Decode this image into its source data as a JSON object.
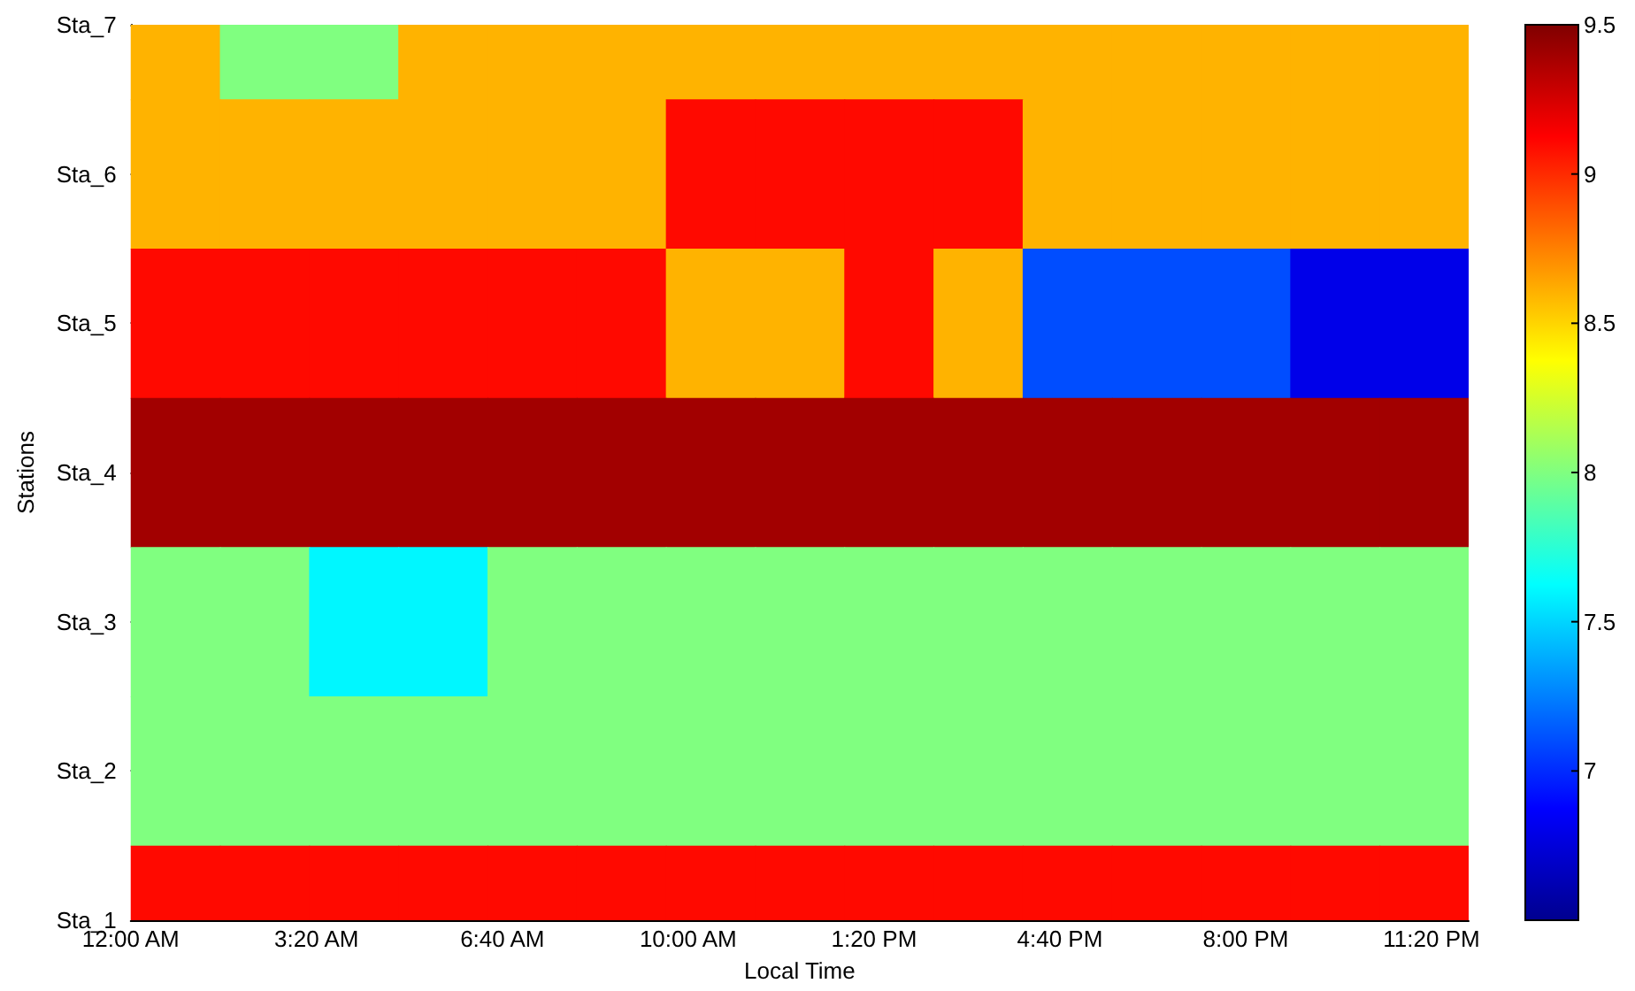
{
  "chart_data": {
    "type": "heatmap",
    "xlabel": "Local Time",
    "ylabel": "Stations",
    "x": [
      0.8,
      2.4,
      4,
      5.6,
      7.2,
      8.8,
      10.4,
      12,
      13.6,
      15.2,
      16.8,
      18.4,
      20,
      21.6,
      23.2
    ],
    "y_categories": [
      "Sta_7",
      "Sta_6",
      "Sta_5",
      "Sta_4",
      "Sta_3",
      "Sta_2",
      "Sta_1"
    ],
    "cells": [
      [
        8.6,
        8.0,
        8.0,
        8.6,
        8.6,
        8.6,
        8.6,
        8.6,
        8.6,
        8.6,
        8.6,
        8.6,
        8.6,
        8.6,
        8.6
      ],
      [
        8.6,
        8.6,
        8.6,
        8.6,
        8.6,
        8.6,
        9.1,
        9.1,
        9.1,
        9.1,
        8.6,
        8.6,
        8.6,
        8.6,
        8.6
      ],
      [
        9.1,
        9.1,
        9.1,
        9.1,
        9.1,
        9.1,
        8.6,
        8.6,
        9.1,
        8.6,
        7.1,
        7.1,
        7.1,
        6.8,
        6.8
      ],
      [
        9.4,
        9.4,
        9.4,
        9.4,
        9.4,
        9.4,
        9.4,
        9.4,
        9.4,
        9.4,
        9.4,
        9.4,
        9.4,
        9.4,
        9.4
      ],
      [
        8.0,
        8.0,
        7.6,
        7.6,
        8.0,
        8.0,
        8.0,
        8.0,
        8.0,
        8.0,
        8.0,
        8.0,
        8.0,
        8.0,
        8.0
      ],
      [
        8.0,
        8.0,
        8.0,
        8.0,
        8.0,
        8.0,
        8.0,
        8.0,
        8.0,
        8.0,
        8.0,
        8.0,
        8.0,
        8.0,
        8.0
      ],
      [
        9.1,
        9.1,
        9.1,
        9.1,
        9.1,
        9.1,
        9.1,
        9.1,
        9.1,
        9.1,
        9.1,
        9.1,
        9.1,
        9.1,
        9.1
      ]
    ],
    "xlim": [
      0,
      24
    ],
    "xticks": [
      {
        "value": 0,
        "label": "12:00 AM"
      },
      {
        "value": 3.3333,
        "label": "3:20 AM"
      },
      {
        "value": 6.6667,
        "label": "6:40 AM"
      },
      {
        "value": 10,
        "label": "10:00 AM"
      },
      {
        "value": 13.3333,
        "label": "1:20 PM"
      },
      {
        "value": 16.6667,
        "label": "4:40 PM"
      },
      {
        "value": 20,
        "label": "8:00 PM"
      },
      {
        "value": 23.3333,
        "label": "11:20 PM"
      }
    ],
    "clim": [
      6.5,
      9.5
    ],
    "cticks": [
      7,
      7.5,
      8,
      8.5,
      9,
      9.5
    ],
    "grid": true
  }
}
